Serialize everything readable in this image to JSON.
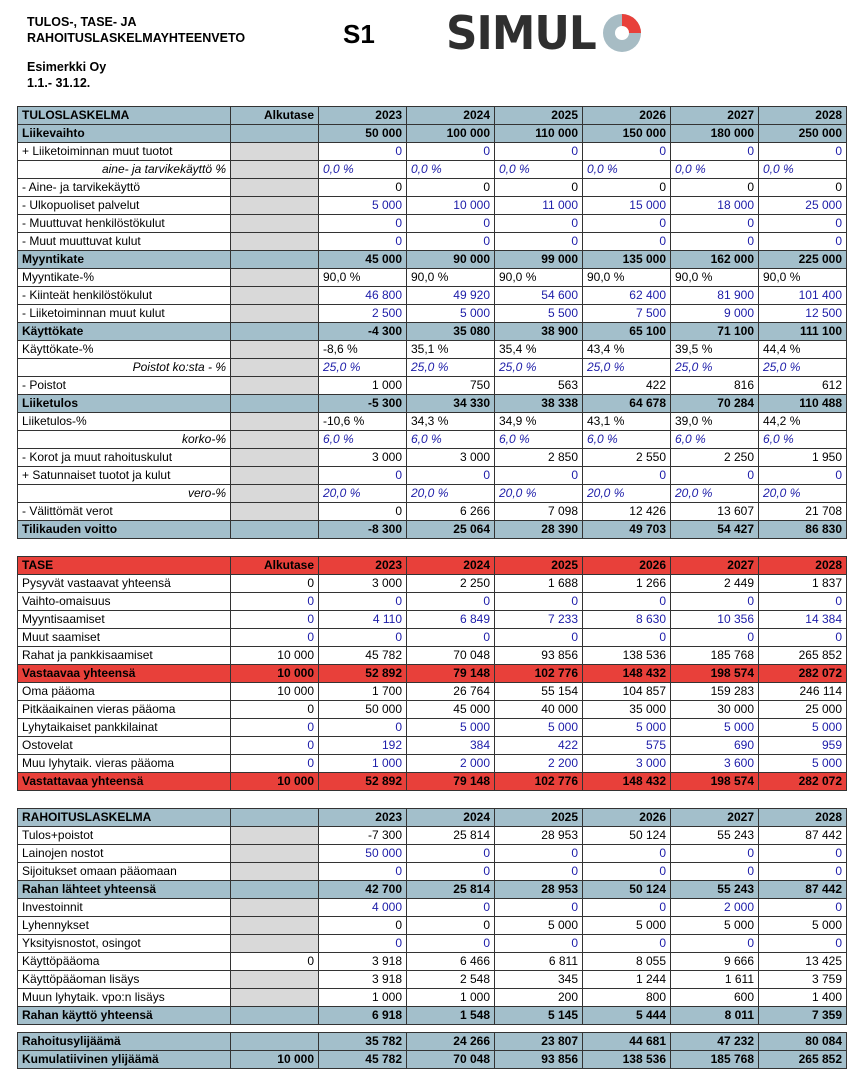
{
  "header": {
    "title_line1": "TULOS-, TASE- JA",
    "title_line2": "RAHOITUSLASKELMAYHTEENVETO",
    "sheet": "S1",
    "logo": "SIMUL",
    "company": "Esimerkki Oy",
    "period": "1.1.- 31.12."
  },
  "tables": [
    {
      "title": "TULOSLASKELMA",
      "alkutase": "Alkutase",
      "years": [
        "2023",
        "2024",
        "2025",
        "2026",
        "2027",
        "2028"
      ],
      "rows": [
        {
          "label": "Liikevaihto",
          "values": [
            "50 000",
            "100 000",
            "110 000",
            "150 000",
            "180 000",
            "250 000"
          ]
        },
        {
          "label": "+ Liiketoiminnan muut tuotot",
          "values": [
            "0",
            "0",
            "0",
            "0",
            "0",
            "0"
          ]
        },
        {
          "label": "aine- ja tarvikekäyttö %",
          "values": [
            "0,0 %",
            "0,0 %",
            "0,0 %",
            "0,0 %",
            "0,0 %",
            "0,0 %"
          ]
        },
        {
          "label": "- Aine- ja tarvikekäyttö",
          "values": [
            "0",
            "0",
            "0",
            "0",
            "0",
            "0"
          ]
        },
        {
          "label": "- Ulkopuoliset palvelut",
          "values": [
            "5 000",
            "10 000",
            "11 000",
            "15 000",
            "18 000",
            "25 000"
          ]
        },
        {
          "label": "- Muuttuvat henkilöstökulut",
          "values": [
            "0",
            "0",
            "0",
            "0",
            "0",
            "0"
          ]
        },
        {
          "label": "- Muut muuttuvat kulut",
          "values": [
            "0",
            "0",
            "0",
            "0",
            "0",
            "0"
          ]
        },
        {
          "label": "Myyntikate",
          "values": [
            "45 000",
            "90 000",
            "99 000",
            "135 000",
            "162 000",
            "225 000"
          ]
        },
        {
          "label": "Myyntikate-%",
          "values": [
            "90,0 %",
            "90,0 %",
            "90,0 %",
            "90,0 %",
            "90,0 %",
            "90,0 %"
          ]
        },
        {
          "label": "- Kiinteät henkilöstökulut",
          "values": [
            "46 800",
            "49 920",
            "54 600",
            "62 400",
            "81 900",
            "101 400"
          ]
        },
        {
          "label": "- Liiketoiminnan muut kulut",
          "values": [
            "2 500",
            "5 000",
            "5 500",
            "7 500",
            "9 000",
            "12 500"
          ]
        },
        {
          "label": "Käyttökate",
          "values": [
            "-4 300",
            "35 080",
            "38 900",
            "65 100",
            "71 100",
            "111 100"
          ]
        },
        {
          "label": "Käyttökate-%",
          "values": [
            "-8,6 %",
            "35,1 %",
            "35,4 %",
            "43,4 %",
            "39,5 %",
            "44,4 %"
          ]
        },
        {
          "label": "Poistot ko:sta - %",
          "values": [
            "25,0 %",
            "25,0 %",
            "25,0 %",
            "25,0 %",
            "25,0 %",
            "25,0 %"
          ]
        },
        {
          "label": "- Poistot",
          "values": [
            "1 000",
            "750",
            "563",
            "422",
            "816",
            "612"
          ]
        },
        {
          "label": "Liiketulos",
          "values": [
            "-5 300",
            "34 330",
            "38 338",
            "64 678",
            "70 284",
            "110 488"
          ]
        },
        {
          "label": "Liiketulos-%",
          "values": [
            "-10,6 %",
            "34,3 %",
            "34,9 %",
            "43,1 %",
            "39,0 %",
            "44,2 %"
          ]
        },
        {
          "label": "korko-%",
          "values": [
            "6,0 %",
            "6,0 %",
            "6,0 %",
            "6,0 %",
            "6,0 %",
            "6,0 %"
          ]
        },
        {
          "label": "- Korot ja muut rahoituskulut",
          "values": [
            "3 000",
            "3 000",
            "2 850",
            "2 550",
            "2 250",
            "1 950"
          ]
        },
        {
          "label": "+ Satunnaiset tuotot ja kulut",
          "values": [
            "0",
            "0",
            "0",
            "0",
            "0",
            "0"
          ]
        },
        {
          "label": "vero-%",
          "values": [
            "20,0 %",
            "20,0 %",
            "20,0 %",
            "20,0 %",
            "20,0 %",
            "20,0 %"
          ]
        },
        {
          "label": "- Välittömät verot",
          "values": [
            "0",
            "6 266",
            "7 098",
            "12 426",
            "13 607",
            "21 708"
          ]
        },
        {
          "label": "Tilikauden voitto",
          "values": [
            "-8 300",
            "25 064",
            "28 390",
            "49 703",
            "54 427",
            "86 830"
          ]
        }
      ]
    },
    {
      "title": "TASE",
      "alkutase": "Alkutase",
      "years": [
        "2023",
        "2024",
        "2025",
        "2026",
        "2027",
        "2028"
      ],
      "rows": [
        {
          "label": "Pysyvät vastaavat yhteensä",
          "alkutase": "0",
          "values": [
            "3 000",
            "2 250",
            "1 688",
            "1 266",
            "2 449",
            "1 837"
          ]
        },
        {
          "label": "Vaihto-omaisuus",
          "alkutase": "0",
          "values": [
            "0",
            "0",
            "0",
            "0",
            "0",
            "0"
          ]
        },
        {
          "label": "Myyntisaamiset",
          "alkutase": "0",
          "values": [
            "4 110",
            "6 849",
            "7 233",
            "8 630",
            "10 356",
            "14 384"
          ]
        },
        {
          "label": "Muut saamiset",
          "alkutase": "0",
          "values": [
            "0",
            "0",
            "0",
            "0",
            "0",
            "0"
          ]
        },
        {
          "label": "Rahat ja pankkisaamiset",
          "alkutase": "10 000",
          "values": [
            "45 782",
            "70 048",
            "93 856",
            "138 536",
            "185 768",
            "265 852"
          ]
        },
        {
          "label": "Vastaavaa yhteensä",
          "alkutase": "10 000",
          "values": [
            "52 892",
            "79 148",
            "102 776",
            "148 432",
            "198 574",
            "282 072"
          ]
        },
        {
          "label": "Oma pääoma",
          "alkutase": "10 000",
          "values": [
            "1 700",
            "26 764",
            "55 154",
            "104 857",
            "159 283",
            "246 114"
          ]
        },
        {
          "label": "Pitkäaikainen vieras pääoma",
          "alkutase": "0",
          "values": [
            "50 000",
            "45 000",
            "40 000",
            "35 000",
            "30 000",
            "25 000"
          ]
        },
        {
          "label": "Lyhytaikaiset pankkilainat",
          "alkutase": "0",
          "values": [
            "0",
            "5 000",
            "5 000",
            "5 000",
            "5 000",
            "5 000"
          ]
        },
        {
          "label": "Ostovelat",
          "alkutase": "0",
          "values": [
            "192",
            "384",
            "422",
            "575",
            "690",
            "959"
          ]
        },
        {
          "label": "Muu lyhytaik. vieras pääoma",
          "alkutase": "0",
          "values": [
            "1 000",
            "2 000",
            "2 200",
            "3 000",
            "3 600",
            "5 000"
          ]
        },
        {
          "label": "Vastattavaa yhteensä",
          "alkutase": "10 000",
          "values": [
            "52 892",
            "79 148",
            "102 776",
            "148 432",
            "198 574",
            "282 072"
          ]
        }
      ]
    },
    {
      "title": "RAHOITUSLASKELMA",
      "years": [
        "2023",
        "2024",
        "2025",
        "2026",
        "2027",
        "2028"
      ],
      "rows": [
        {
          "label": "Tulos+poistot",
          "values": [
            "-7 300",
            "25 814",
            "28 953",
            "50 124",
            "55 243",
            "87 442"
          ]
        },
        {
          "label": "Lainojen nostot",
          "values": [
            "50 000",
            "0",
            "0",
            "0",
            "0",
            "0"
          ]
        },
        {
          "label": "Sijoitukset omaan pääomaan",
          "values": [
            "0",
            "0",
            "0",
            "0",
            "0",
            "0"
          ]
        },
        {
          "label": "Rahan lähteet yhteensä",
          "values": [
            "42 700",
            "25 814",
            "28 953",
            "50 124",
            "55 243",
            "87 442"
          ]
        },
        {
          "label": "Investoinnit",
          "values": [
            "4 000",
            "0",
            "0",
            "0",
            "2 000",
            "0"
          ]
        },
        {
          "label": "Lyhennykset",
          "values": [
            "0",
            "0",
            "5 000",
            "5 000",
            "5 000",
            "5 000"
          ]
        },
        {
          "label": "Yksityisnostot, osingot",
          "values": [
            "0",
            "0",
            "0",
            "0",
            "0",
            "0"
          ]
        },
        {
          "label": "Käyttöpääoma",
          "alkutase": "0",
          "values": [
            "3 918",
            "6 466",
            "6 811",
            "8 055",
            "9 666",
            "13 425"
          ]
        },
        {
          "label": "Käyttöpääoman lisäys",
          "values": [
            "3 918",
            "2 548",
            "345",
            "1 244",
            "1 611",
            "3 759"
          ]
        },
        {
          "label": "Muun lyhytaik. vpo:n lisäys",
          "values": [
            "1 000",
            "1 000",
            "200",
            "800",
            "600",
            "1 400"
          ]
        },
        {
          "label": "Rahan käyttö yhteensä",
          "values": [
            "6 918",
            "1 548",
            "5 145",
            "5 444",
            "8 011",
            "7 359"
          ]
        },
        {
          "label": "Rahoitusylijäämä",
          "values": [
            "35 782",
            "24 266",
            "23 807",
            "44 681",
            "47 232",
            "80 084"
          ]
        },
        {
          "label": "Kumulatiivinen ylijäämä",
          "alkutase": "10 000",
          "values": [
            "45 782",
            "70 048",
            "93 856",
            "138 536",
            "185 768",
            "265 852"
          ]
        }
      ]
    }
  ]
}
